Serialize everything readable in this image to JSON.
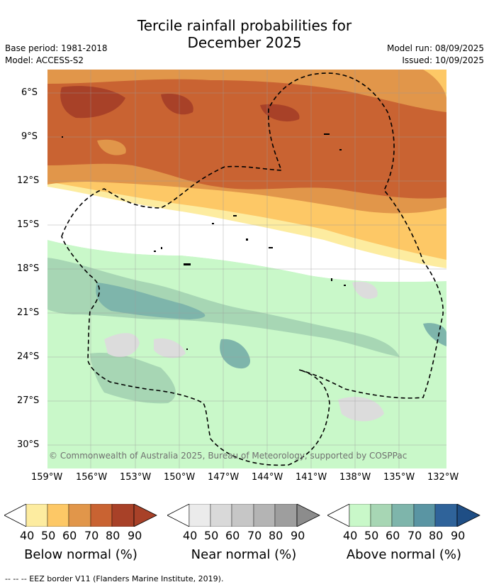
{
  "title": {
    "line1": "Tercile rainfall probabilities for",
    "line2": "December 2025"
  },
  "meta": {
    "base_period": "Base period: 1981-2018",
    "model": "Model: ACCESS-S2",
    "model_run": "Model run: 08/09/2025",
    "issued": "Issued: 10/09/2025"
  },
  "map": {
    "copyright": "© Commonwealth of Australia 2025, Bureau of Meteorology, supported by COSPPac",
    "lat_labels": [
      "6°S",
      "9°S",
      "12°S",
      "15°S",
      "18°S",
      "21°S",
      "24°S",
      "27°S",
      "30°S"
    ],
    "lon_labels": [
      "159°W",
      "156°W",
      "153°W",
      "150°W",
      "147°W",
      "144°W",
      "141°W",
      "138°W",
      "135°W",
      "132°W"
    ]
  },
  "colorbars": [
    {
      "caption": "Below normal (%)",
      "ticks": [
        "40",
        "50",
        "60",
        "70",
        "80",
        "90"
      ],
      "colors": [
        "#fdeca0",
        "#fdc866",
        "#e1964a",
        "#c96332",
        "#a84128",
        "#a84128"
      ]
    },
    {
      "caption": "Near normal (%)",
      "ticks": [
        "40",
        "50",
        "60",
        "70",
        "80",
        "90"
      ],
      "colors": [
        "#ebebeb",
        "#d9d9d9",
        "#c6c6c6",
        "#b4b4b4",
        "#9e9e9e",
        "#8c8c8c"
      ]
    },
    {
      "caption": "Above normal (%)",
      "ticks": [
        "40",
        "50",
        "60",
        "70",
        "80",
        "90"
      ],
      "colors": [
        "#c9f8c9",
        "#a7d6b4",
        "#7eb5ab",
        "#5a95a3",
        "#2f639a",
        "#1f4e85"
      ]
    }
  ],
  "footer": "--  --  -- EEZ border V11 (Flanders Marine Institute, 2019)."
}
